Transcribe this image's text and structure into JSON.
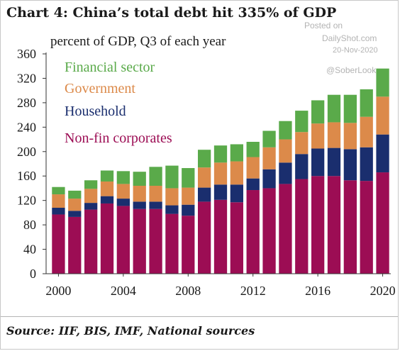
{
  "header": {
    "title": "Chart 4:  China’s total debt hit 335% of GDP",
    "unit_label": "percent of GDP, Q3  of each year"
  },
  "watermark": {
    "line1": "Posted on",
    "line2": "DailyShot.com",
    "line3": "20-Nov-2020",
    "handle": "@SoberLook"
  },
  "footer": {
    "source": "Source: IIF, BIS, IMF, National sources"
  },
  "colors": {
    "financial": "#5aaa4a",
    "government": "#dc8a4a",
    "household": "#1a2e6e",
    "corporate": "#9c0d54"
  },
  "chart_data": {
    "type": "bar",
    "stacked": true,
    "categories": [
      "2000",
      "2001",
      "2002",
      "2003",
      "2004",
      "2005",
      "2006",
      "2007",
      "2008",
      "2009",
      "2010",
      "2011",
      "2012",
      "2013",
      "2014",
      "2015",
      "2016",
      "2017",
      "2018",
      "2019",
      "2020"
    ],
    "x_tick_labels": [
      "2000",
      "2004",
      "2008",
      "2012",
      "2016",
      "2020"
    ],
    "y_ticks": [
      0,
      40,
      80,
      120,
      160,
      200,
      240,
      280,
      320,
      360
    ],
    "ylim": [
      0,
      360
    ],
    "grid": false,
    "legend_position": "top-left",
    "series": [
      {
        "name": "Non-fin corporates",
        "color_key": "corporate",
        "values": [
          97,
          93,
          105,
          115,
          111,
          106,
          106,
          98,
          95,
          118,
          121,
          117,
          137,
          140,
          147,
          155,
          160,
          160,
          153,
          152,
          166
        ]
      },
      {
        "name": "Household",
        "color_key": "household",
        "values": [
          11,
          10,
          11,
          12,
          12,
          12,
          12,
          14,
          18,
          23,
          25,
          29,
          19,
          31,
          35,
          41,
          45,
          46,
          51,
          55,
          62
        ]
      },
      {
        "name": "Government",
        "color_key": "government",
        "values": [
          22,
          20,
          23,
          24,
          24,
          26,
          26,
          28,
          28,
          33,
          36,
          38,
          35,
          36,
          38,
          36,
          41,
          42,
          43,
          50,
          62
        ]
      },
      {
        "name": "Financial sector",
        "color_key": "financial",
        "values": [
          12,
          13,
          14,
          18,
          21,
          23,
          31,
          37,
          32,
          29,
          28,
          28,
          25,
          27,
          30,
          35,
          38,
          45,
          46,
          45,
          46
        ]
      }
    ]
  }
}
